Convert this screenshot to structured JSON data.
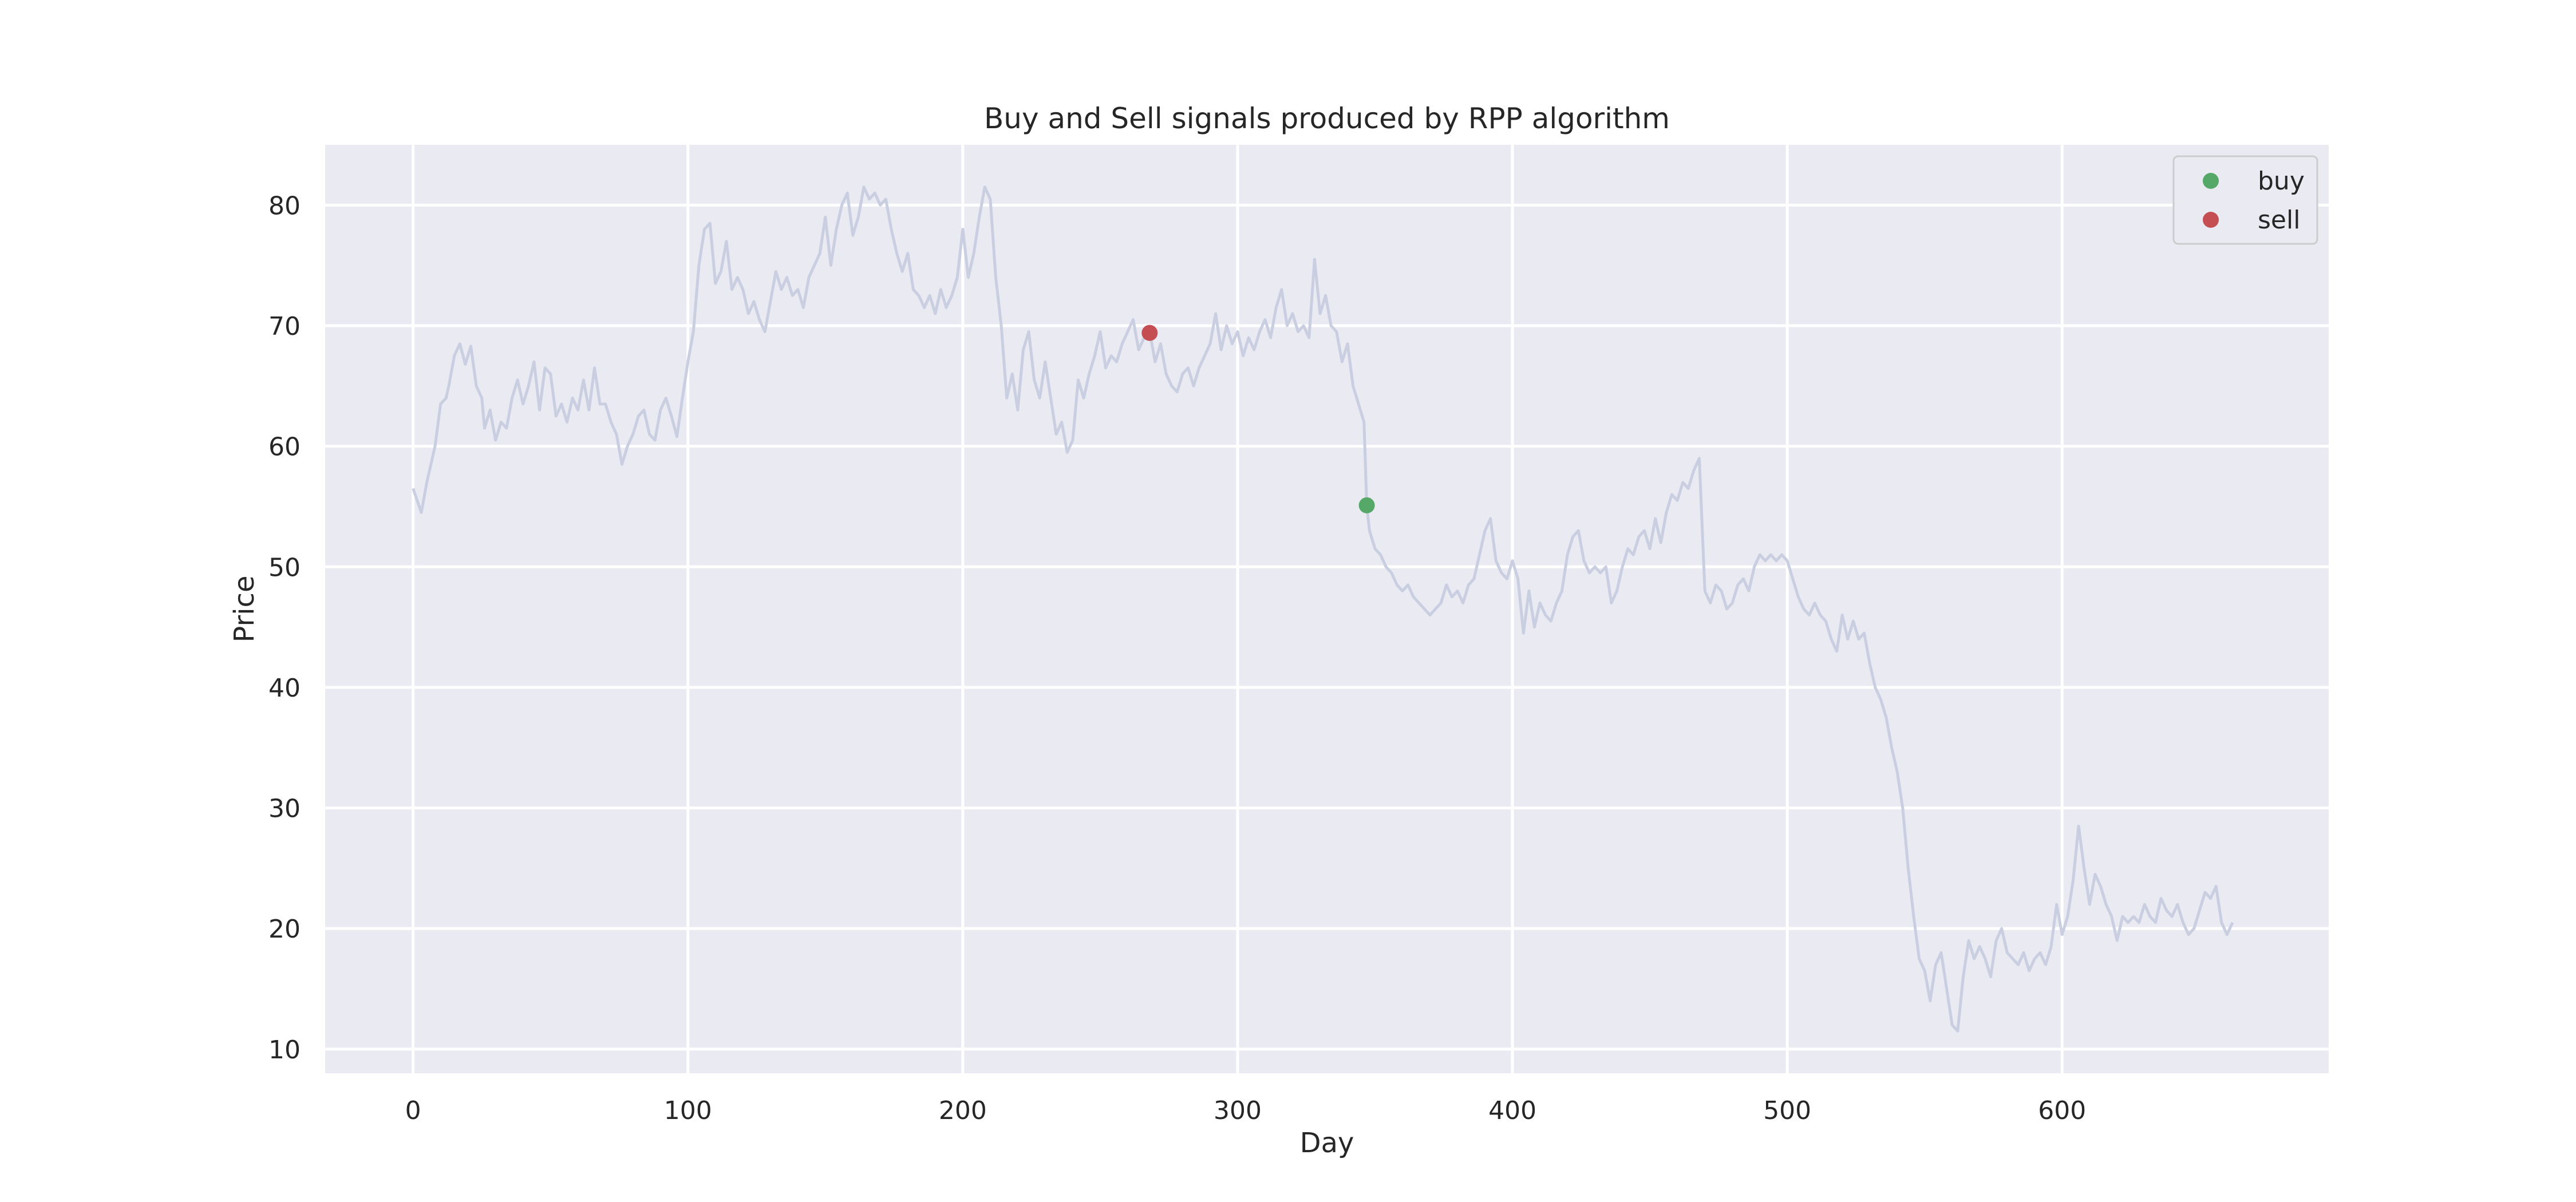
{
  "chart_data": {
    "type": "line",
    "title": "Buy and Sell signals produced by RPP algorithm",
    "xlabel": "Day",
    "ylabel": "Price",
    "xlim": [
      -32,
      697
    ],
    "ylim": [
      8,
      85
    ],
    "xticks": [
      0,
      100,
      200,
      300,
      400,
      500,
      600
    ],
    "yticks": [
      10,
      20,
      30,
      40,
      50,
      60,
      70,
      80
    ],
    "grid": true,
    "legend_position": "top-right",
    "colors": {
      "background": "#eaeaf2",
      "grid": "#ffffff",
      "price_line": "#c9cfe0",
      "buy": "#55a868",
      "sell": "#c44e52",
      "text": "#262626"
    },
    "price_series": [
      [
        0,
        56.5
      ],
      [
        3,
        54.5
      ],
      [
        5,
        57
      ],
      [
        8,
        60
      ],
      [
        10,
        63.5
      ],
      [
        12,
        64
      ],
      [
        13,
        65
      ],
      [
        15,
        67.5
      ],
      [
        17,
        68.5
      ],
      [
        19,
        66.8
      ],
      [
        21,
        68.3
      ],
      [
        23,
        65
      ],
      [
        25,
        64
      ],
      [
        26,
        61.5
      ],
      [
        28,
        63
      ],
      [
        30,
        60.5
      ],
      [
        32,
        62
      ],
      [
        34,
        61.5
      ],
      [
        36,
        64
      ],
      [
        38,
        65.5
      ],
      [
        40,
        63.5
      ],
      [
        42,
        65
      ],
      [
        44,
        67
      ],
      [
        46,
        63
      ],
      [
        48,
        66.5
      ],
      [
        50,
        66
      ],
      [
        52,
        62.5
      ],
      [
        54,
        63.5
      ],
      [
        56,
        62
      ],
      [
        58,
        64
      ],
      [
        60,
        63
      ],
      [
        62,
        65.5
      ],
      [
        64,
        63
      ],
      [
        66,
        66.5
      ],
      [
        68,
        63.5
      ],
      [
        70,
        63.5
      ],
      [
        72,
        62
      ],
      [
        74,
        61
      ],
      [
        76,
        58.5
      ],
      [
        78,
        60
      ],
      [
        80,
        61
      ],
      [
        82,
        62.5
      ],
      [
        84,
        63
      ],
      [
        86,
        61
      ],
      [
        88,
        60.5
      ],
      [
        90,
        63
      ],
      [
        92,
        64
      ],
      [
        94,
        62.5
      ],
      [
        96,
        60.8
      ],
      [
        98,
        64
      ],
      [
        100,
        67
      ],
      [
        102,
        69.5
      ],
      [
        104,
        75
      ],
      [
        106,
        78
      ],
      [
        108,
        78.5
      ],
      [
        110,
        73.5
      ],
      [
        112,
        74.5
      ],
      [
        114,
        77
      ],
      [
        116,
        73
      ],
      [
        118,
        74
      ],
      [
        120,
        73
      ],
      [
        122,
        71
      ],
      [
        124,
        72
      ],
      [
        126,
        70.5
      ],
      [
        128,
        69.5
      ],
      [
        130,
        72
      ],
      [
        132,
        74.5
      ],
      [
        134,
        73
      ],
      [
        136,
        74
      ],
      [
        138,
        72.5
      ],
      [
        140,
        73
      ],
      [
        142,
        71.5
      ],
      [
        144,
        74
      ],
      [
        146,
        75
      ],
      [
        148,
        76
      ],
      [
        150,
        79
      ],
      [
        152,
        75
      ],
      [
        154,
        78
      ],
      [
        156,
        80
      ],
      [
        158,
        81
      ],
      [
        160,
        77.5
      ],
      [
        162,
        79
      ],
      [
        164,
        81.5
      ],
      [
        166,
        80.5
      ],
      [
        168,
        81
      ],
      [
        170,
        80
      ],
      [
        172,
        80.5
      ],
      [
        174,
        78
      ],
      [
        176,
        76
      ],
      [
        178,
        74.5
      ],
      [
        180,
        76
      ],
      [
        182,
        73
      ],
      [
        184,
        72.5
      ],
      [
        186,
        71.5
      ],
      [
        188,
        72.5
      ],
      [
        190,
        71
      ],
      [
        192,
        73
      ],
      [
        194,
        71.5
      ],
      [
        196,
        72.5
      ],
      [
        198,
        74
      ],
      [
        200,
        78
      ],
      [
        202,
        74
      ],
      [
        204,
        76
      ],
      [
        206,
        79
      ],
      [
        208,
        81.5
      ],
      [
        210,
        80.5
      ],
      [
        212,
        74
      ],
      [
        214,
        70
      ],
      [
        216,
        64
      ],
      [
        218,
        66
      ],
      [
        220,
        63
      ],
      [
        222,
        68
      ],
      [
        224,
        69.5
      ],
      [
        226,
        65.5
      ],
      [
        228,
        64
      ],
      [
        230,
        67
      ],
      [
        232,
        64
      ],
      [
        234,
        61
      ],
      [
        236,
        62
      ],
      [
        238,
        59.5
      ],
      [
        240,
        60.5
      ],
      [
        242,
        65.5
      ],
      [
        244,
        64
      ],
      [
        246,
        66
      ],
      [
        248,
        67.5
      ],
      [
        250,
        69.5
      ],
      [
        252,
        66.5
      ],
      [
        254,
        67.5
      ],
      [
        256,
        67
      ],
      [
        258,
        68.5
      ],
      [
        260,
        69.5
      ],
      [
        262,
        70.5
      ],
      [
        264,
        68
      ],
      [
        266,
        69
      ],
      [
        268,
        69.5
      ],
      [
        270,
        67
      ],
      [
        272,
        68.5
      ],
      [
        274,
        66
      ],
      [
        276,
        65
      ],
      [
        278,
        64.5
      ],
      [
        280,
        66
      ],
      [
        282,
        66.5
      ],
      [
        284,
        65
      ],
      [
        286,
        66.5
      ],
      [
        288,
        67.5
      ],
      [
        290,
        68.5
      ],
      [
        292,
        71
      ],
      [
        294,
        68
      ],
      [
        296,
        70
      ],
      [
        298,
        68.5
      ],
      [
        300,
        69.5
      ],
      [
        302,
        67.5
      ],
      [
        304,
        69
      ],
      [
        306,
        68
      ],
      [
        308,
        69.5
      ],
      [
        310,
        70.5
      ],
      [
        312,
        69
      ],
      [
        314,
        71.5
      ],
      [
        316,
        73
      ],
      [
        318,
        70
      ],
      [
        320,
        71
      ],
      [
        322,
        69.5
      ],
      [
        324,
        70
      ],
      [
        326,
        69
      ],
      [
        328,
        75.5
      ],
      [
        330,
        71
      ],
      [
        332,
        72.5
      ],
      [
        334,
        70
      ],
      [
        336,
        69.5
      ],
      [
        338,
        67
      ],
      [
        340,
        68.5
      ],
      [
        342,
        65
      ],
      [
        344,
        63.5
      ],
      [
        346,
        62
      ],
      [
        347,
        55
      ],
      [
        348,
        53
      ],
      [
        350,
        51.5
      ],
      [
        352,
        51
      ],
      [
        354,
        50
      ],
      [
        356,
        49.5
      ],
      [
        358,
        48.5
      ],
      [
        360,
        48
      ],
      [
        362,
        48.5
      ],
      [
        364,
        47.5
      ],
      [
        366,
        47
      ],
      [
        368,
        46.5
      ],
      [
        370,
        46
      ],
      [
        372,
        46.5
      ],
      [
        374,
        47
      ],
      [
        376,
        48.5
      ],
      [
        378,
        47.5
      ],
      [
        380,
        48
      ],
      [
        382,
        47
      ],
      [
        384,
        48.5
      ],
      [
        386,
        49
      ],
      [
        388,
        51
      ],
      [
        390,
        53
      ],
      [
        392,
        54
      ],
      [
        394,
        50.5
      ],
      [
        396,
        49.5
      ],
      [
        398,
        49
      ],
      [
        400,
        50.5
      ],
      [
        402,
        49
      ],
      [
        404,
        44.5
      ],
      [
        406,
        48
      ],
      [
        408,
        45
      ],
      [
        410,
        47
      ],
      [
        412,
        46
      ],
      [
        414,
        45.5
      ],
      [
        416,
        47
      ],
      [
        418,
        48
      ],
      [
        420,
        51
      ],
      [
        422,
        52.5
      ],
      [
        424,
        53
      ],
      [
        426,
        50.5
      ],
      [
        428,
        49.5
      ],
      [
        430,
        50
      ],
      [
        432,
        49.5
      ],
      [
        434,
        50
      ],
      [
        436,
        47
      ],
      [
        438,
        48
      ],
      [
        440,
        50
      ],
      [
        442,
        51.5
      ],
      [
        444,
        51
      ],
      [
        446,
        52.5
      ],
      [
        448,
        53
      ],
      [
        450,
        51.5
      ],
      [
        452,
        54
      ],
      [
        454,
        52
      ],
      [
        456,
        54.5
      ],
      [
        458,
        56
      ],
      [
        460,
        55.5
      ],
      [
        462,
        57
      ],
      [
        464,
        56.5
      ],
      [
        466,
        58
      ],
      [
        468,
        59
      ],
      [
        470,
        48
      ],
      [
        472,
        47
      ],
      [
        474,
        48.5
      ],
      [
        476,
        48
      ],
      [
        478,
        46.5
      ],
      [
        480,
        47
      ],
      [
        482,
        48.5
      ],
      [
        484,
        49
      ],
      [
        486,
        48
      ],
      [
        488,
        50
      ],
      [
        490,
        51
      ],
      [
        492,
        50.5
      ],
      [
        494,
        51
      ],
      [
        496,
        50.5
      ],
      [
        498,
        51
      ],
      [
        500,
        50.5
      ],
      [
        502,
        49
      ],
      [
        504,
        47.5
      ],
      [
        506,
        46.5
      ],
      [
        508,
        46
      ],
      [
        510,
        47
      ],
      [
        512,
        46
      ],
      [
        514,
        45.5
      ],
      [
        516,
        44
      ],
      [
        518,
        43
      ],
      [
        520,
        46
      ],
      [
        522,
        44
      ],
      [
        524,
        45.5
      ],
      [
        526,
        44
      ],
      [
        528,
        44.5
      ],
      [
        530,
        42
      ],
      [
        532,
        40
      ],
      [
        534,
        39
      ],
      [
        536,
        37.5
      ],
      [
        538,
        35
      ],
      [
        540,
        33
      ],
      [
        542,
        30
      ],
      [
        544,
        25
      ],
      [
        546,
        21
      ],
      [
        548,
        17.5
      ],
      [
        550,
        16.5
      ],
      [
        552,
        14
      ],
      [
        554,
        17
      ],
      [
        556,
        18
      ],
      [
        558,
        15
      ],
      [
        560,
        12
      ],
      [
        562,
        11.5
      ],
      [
        564,
        16
      ],
      [
        566,
        19
      ],
      [
        568,
        17.5
      ],
      [
        570,
        18.5
      ],
      [
        572,
        17.5
      ],
      [
        574,
        16
      ],
      [
        576,
        19
      ],
      [
        578,
        20
      ],
      [
        580,
        18
      ],
      [
        582,
        17.5
      ],
      [
        584,
        17
      ],
      [
        586,
        18
      ],
      [
        588,
        16.5
      ],
      [
        590,
        17.5
      ],
      [
        592,
        18
      ],
      [
        594,
        17
      ],
      [
        596,
        18.5
      ],
      [
        598,
        22
      ],
      [
        600,
        19.5
      ],
      [
        602,
        21
      ],
      [
        604,
        24
      ],
      [
        606,
        28.5
      ],
      [
        608,
        25
      ],
      [
        610,
        22
      ],
      [
        612,
        24.5
      ],
      [
        614,
        23.5
      ],
      [
        616,
        22
      ],
      [
        618,
        21
      ],
      [
        620,
        19
      ],
      [
        622,
        21
      ],
      [
        624,
        20.5
      ],
      [
        626,
        21
      ],
      [
        628,
        20.5
      ],
      [
        630,
        22
      ],
      [
        632,
        21
      ],
      [
        634,
        20.5
      ],
      [
        636,
        22.5
      ],
      [
        638,
        21.5
      ],
      [
        640,
        21
      ],
      [
        642,
        22
      ],
      [
        644,
        20.5
      ],
      [
        646,
        19.5
      ],
      [
        648,
        20
      ],
      [
        650,
        21.5
      ],
      [
        652,
        23
      ],
      [
        654,
        22.5
      ],
      [
        656,
        23.5
      ],
      [
        658,
        20.5
      ],
      [
        660,
        19.5
      ],
      [
        662,
        20.5
      ]
    ],
    "series": [
      {
        "name": "buy",
        "points": [
          {
            "x": 347,
            "y": 55.1
          }
        ]
      },
      {
        "name": "sell",
        "points": [
          {
            "x": 268,
            "y": 69.4
          }
        ]
      }
    ]
  }
}
